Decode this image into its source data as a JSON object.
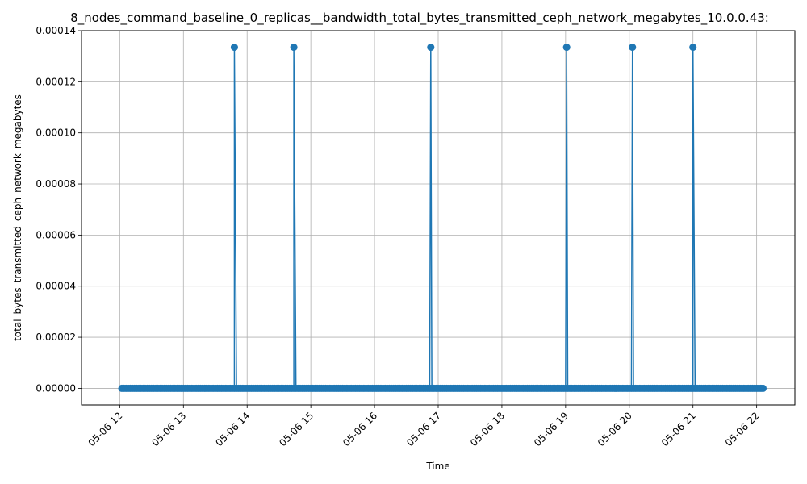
{
  "chart_data": {
    "type": "line",
    "title": "8_nodes_command_baseline_0_replicas__bandwidth_total_bytes_transmitted_ceph_network_megabytes_10.0.0.43:",
    "xlabel": "Time",
    "ylabel": "total_bytes_transmitted_ceph_network_megabytes",
    "x_range": [
      "05-06 11:24",
      "05-06 22:36"
    ],
    "ylim": [
      -6.5e-06,
      0.00014
    ],
    "grid": true,
    "legend": "none",
    "color": "#1f77b4",
    "x_ticks": [
      "05-06 12",
      "05-06 13",
      "05-06 14",
      "05-06 15",
      "05-06 16",
      "05-06 17",
      "05-06 18",
      "05-06 19",
      "05-06 20",
      "05-06 21",
      "05-06 22"
    ],
    "y_ticks": [
      "0.00000",
      "0.00002",
      "0.00004",
      "0.00006",
      "0.00008",
      "0.00010",
      "0.00012",
      "0.00014"
    ],
    "sampling": {
      "start": "05-06 12:02",
      "end": "05-06 22:07",
      "interval_minutes": 2,
      "baseline": 0
    },
    "series": [
      {
        "values_nonzero": [
          {
            "x": "05-06 13:48",
            "y": 0.0001335
          },
          {
            "x": "05-06 14:44",
            "y": 0.0001335
          },
          {
            "x": "05-06 16:53",
            "y": 0.0001335
          },
          {
            "x": "05-06 19:01",
            "y": 0.0001335
          },
          {
            "x": "05-06 20:03",
            "y": 0.0001335
          },
          {
            "x": "05-06 21:00",
            "y": 0.0001335
          }
        ]
      }
    ]
  }
}
